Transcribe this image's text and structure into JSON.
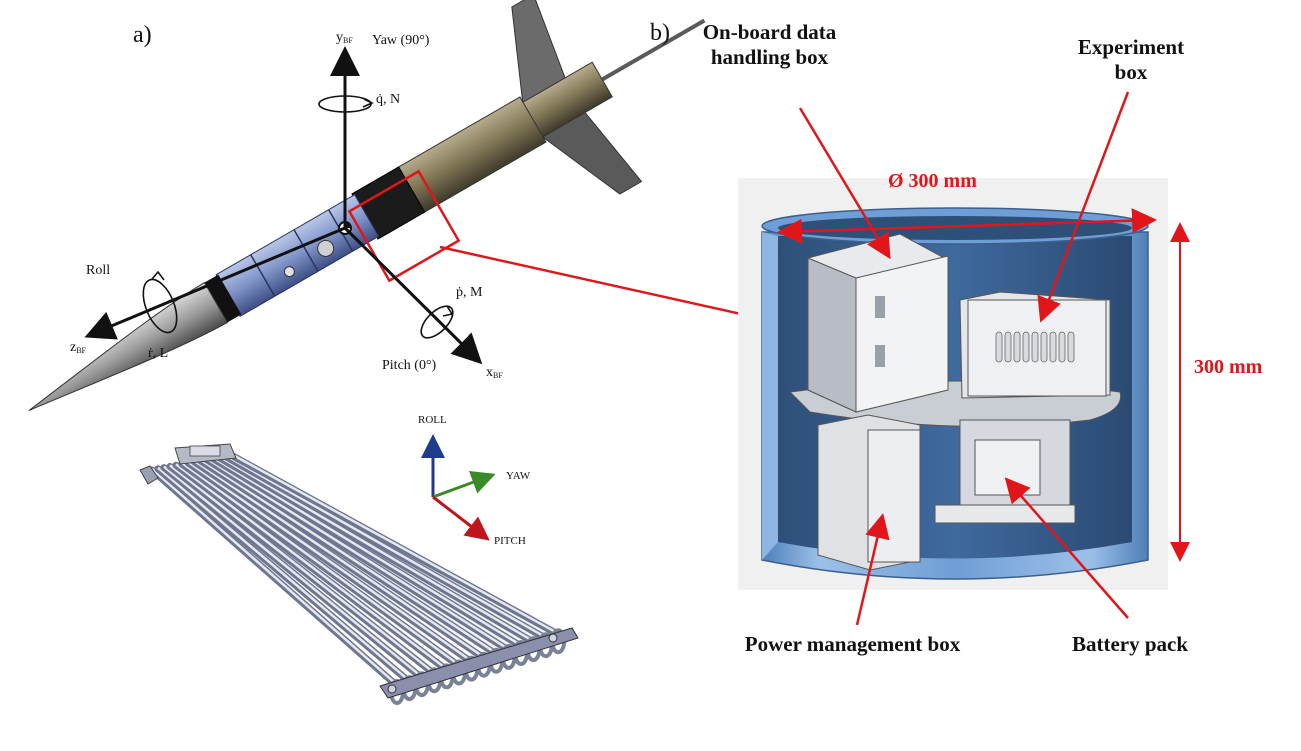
{
  "panel_labels": {
    "a": "a)",
    "b": "b)"
  },
  "rocket_axes": {
    "yaw_axis": "y",
    "yaw_axis_sub": "BF",
    "yaw_label": "Yaw (90°)",
    "yaw_rate": "q̇, N",
    "roll_label": "Roll",
    "roll_axis": "z",
    "roll_axis_sub": "BF",
    "roll_rate": "ṙ, L",
    "pitch_rate": "ṗ, M",
    "pitch_label": "Pitch (0°)",
    "pitch_axis": "x",
    "pitch_axis_sub": "BF"
  },
  "triad": {
    "roll": "ROLL",
    "yaw": "YAW",
    "pitch": "PITCH"
  },
  "module_labels": {
    "obdh": "On-board data handling box",
    "experiment": "Experiment box",
    "power": "Power management box",
    "battery": "Battery pack"
  },
  "dimensions": {
    "diameter": "Ø 300 mm",
    "height": "300 mm"
  },
  "colors": {
    "annotation_red": "#e0161b",
    "module_blue": "#6f9ed6",
    "triad_roll": "#1f3b8c",
    "triad_yaw": "#3a8a2a",
    "triad_pitch": "#c0141c"
  }
}
